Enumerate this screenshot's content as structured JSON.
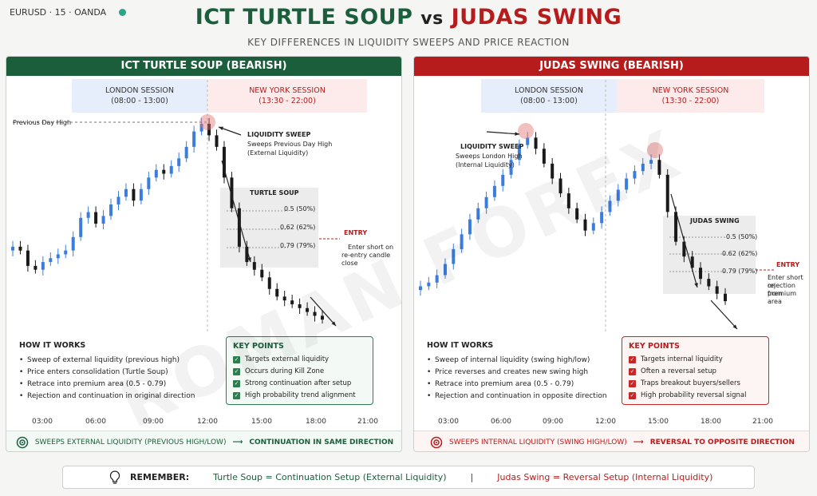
{
  "ticker": "EURUSD · 15 · OANDA",
  "title": {
    "left": "ICT TURTLE SOUP",
    "vs": "vs",
    "right": "JUDAS SWING"
  },
  "subtitle": "KEY DIFFERENCES IN LIQUIDITY SWEEPS AND PRICE REACTION",
  "watermark": "ROMAN FOREX",
  "left": {
    "header": "ICT TURTLE SOUP (BEARISH)",
    "london": {
      "name": "LONDON SESSION",
      "time": "(08:00 - 13:00)"
    },
    "ny": {
      "name": "NEW YORK SESSION",
      "time": "(13:30 - 22:00)"
    },
    "pdh": "Previous Day High",
    "sweep_title": "LIQUIDITY SWEEP",
    "sweep_l1": "Sweeps Previous Day High",
    "sweep_l2": "(External Liquidity)",
    "box_title": "TURTLE SOUP",
    "fib": [
      "0.5 (50%)",
      "0.62 (62%)",
      "0.79 (79%)"
    ],
    "entry": "ENTRY",
    "entry_l1": "Enter short on",
    "entry_l2": "re-entry candle close",
    "how_title": "HOW IT WORKS",
    "how": [
      "Sweep of external liquidity (previous high)",
      "Price enters consolidation (Turtle Soup)",
      "Retrace into premium area (0.5 - 0.79)",
      "Rejection and continuation in original direction"
    ],
    "kp_title": "KEY POINTS",
    "kp": [
      "Targets external liquidity",
      "Occurs during Kill Zone",
      "Strong continuation after setup",
      "High probability trend alignment"
    ],
    "footer_a": "SWEEPS EXTERNAL LIQUIDITY (PREVIOUS HIGH/LOW)",
    "footer_b": "CONTINUATION IN SAME DIRECTION"
  },
  "right": {
    "header": "JUDAS SWING (BEARISH)",
    "london": {
      "name": "LONDON SESSION",
      "time": "(08:00 - 13:00)"
    },
    "ny": {
      "name": "NEW YORK SESSION",
      "time": "(13:30 - 22:00)"
    },
    "sweep_title": "LIQUIDITY SWEEP",
    "sweep_l1": "Sweeps London High",
    "sweep_l2": "(Internal Liquidity)",
    "box_title": "JUDAS SWING",
    "fib": [
      "0.5 (50%)",
      "0.62 (62%)",
      "0.79 (79%)"
    ],
    "entry": "ENTRY",
    "entry_l1": "Enter short on",
    "entry_l2": "rejection from",
    "entry_l3": "premium area",
    "how_title": "HOW IT WORKS",
    "how": [
      "Sweep of internal liquidity (swing high/low)",
      "Price reverses and creates new swing high",
      "Retrace into premium area (0.5 - 0.79)",
      "Rejection and continuation in opposite direction"
    ],
    "kp_title": "KEY POINTS",
    "kp": [
      "Targets internal liquidity",
      "Often a reversal setup",
      "Traps breakout buyers/sellers",
      "High probability reversal signal"
    ],
    "footer_a": "SWEEPS INTERNAL LIQUIDITY (SWING HIGH/LOW)",
    "footer_b": "REVERSAL TO OPPOSITE DIRECTION"
  },
  "axis_ticks": [
    "03:00",
    "06:00",
    "09:00",
    "12:00",
    "15:00",
    "18:00",
    "21:00"
  ],
  "remember": {
    "label": "REMEMBER:",
    "left": "Turtle Soup = Continuation Setup (External Liquidity)",
    "sep": "|",
    "right": "Judas Swing = Reversal Setup (Internal Liquidity)"
  },
  "colors": {
    "bull": "#3b7ddd",
    "bear": "#1a1a1a",
    "green": "#1b5e3c",
    "red": "#b71c1c"
  },
  "chart_data": [
    {
      "type": "candlestick",
      "name": "ICT Turtle Soup (Bearish)",
      "x_ticks": [
        "03:00",
        "06:00",
        "09:00",
        "12:00",
        "15:00",
        "18:00",
        "21:00"
      ],
      "path": [
        40,
        38,
        30,
        28,
        32,
        34,
        36,
        38,
        45,
        55,
        58,
        52,
        56,
        62,
        66,
        70,
        64,
        70,
        76,
        80,
        78,
        82,
        86,
        92,
        100,
        104,
        98,
        92,
        76,
        60,
        40,
        32,
        28,
        24,
        18,
        14,
        12,
        10,
        8,
        6,
        4,
        2
      ],
      "fib_levels": [
        0.5,
        0.62,
        0.79
      ]
    },
    {
      "type": "candlestick",
      "name": "Judas Swing (Bearish)",
      "x_ticks": [
        "03:00",
        "06:00",
        "09:00",
        "12:00",
        "15:00",
        "18:00",
        "21:00"
      ],
      "path": [
        20,
        22,
        26,
        32,
        40,
        48,
        56,
        62,
        68,
        74,
        80,
        88,
        96,
        100,
        94,
        86,
        78,
        70,
        62,
        56,
        50,
        54,
        60,
        66,
        72,
        78,
        82,
        86,
        88,
        80,
        60,
        44,
        36,
        30,
        24,
        20,
        16,
        12
      ],
      "fib_levels": [
        0.5,
        0.62,
        0.79
      ]
    }
  ]
}
